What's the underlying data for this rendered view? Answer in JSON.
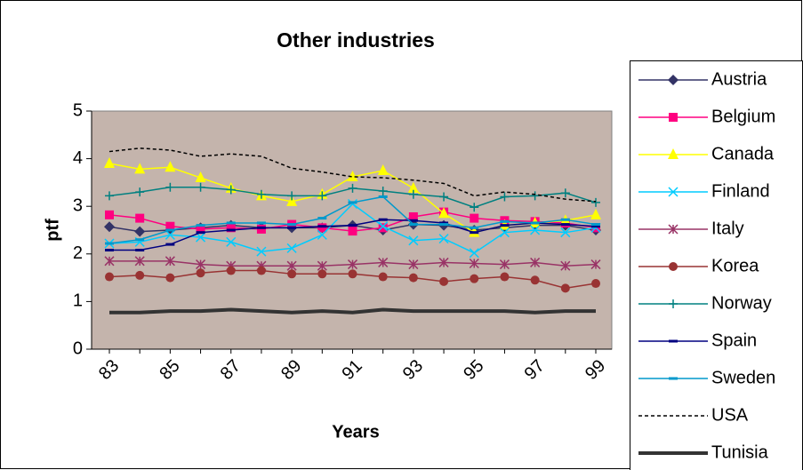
{
  "chart_data": {
    "type": "line",
    "title": "Other industries",
    "x_label": "Years",
    "y_label": "ptf",
    "categories": [
      "83",
      null,
      "85",
      null,
      "87",
      null,
      "89",
      null,
      "91",
      null,
      "93",
      null,
      "95",
      null,
      "97",
      null,
      "99"
    ],
    "ylim": [
      0,
      5
    ],
    "yticks": [
      0,
      1,
      2,
      3,
      4,
      5
    ],
    "background": "#c4b4ac",
    "series": [
      {
        "name": "Austria",
        "color": "#333366",
        "marker": "diamond",
        "values": [
          2.57,
          2.47,
          2.5,
          2.55,
          2.6,
          2.55,
          2.55,
          2.55,
          2.6,
          2.5,
          2.62,
          2.6,
          2.5,
          2.55,
          2.6,
          2.6,
          2.5
        ]
      },
      {
        "name": "Belgium",
        "color": "#ff0080",
        "marker": "square",
        "values": [
          2.82,
          2.75,
          2.58,
          2.52,
          2.55,
          2.52,
          2.62,
          2.55,
          2.48,
          2.55,
          2.78,
          2.88,
          2.75,
          2.7,
          2.68,
          2.65,
          2.55
        ]
      },
      {
        "name": "Canada",
        "color": "#ffff00",
        "marker": "triangle",
        "values": [
          3.9,
          3.78,
          3.82,
          3.6,
          3.38,
          3.22,
          3.1,
          3.25,
          3.62,
          3.75,
          3.38,
          2.85,
          2.45,
          2.6,
          2.65,
          2.7,
          2.82
        ]
      },
      {
        "name": "Finland",
        "color": "#00ccff",
        "marker": "x",
        "values": [
          2.22,
          2.25,
          2.4,
          2.35,
          2.25,
          2.05,
          2.12,
          2.4,
          3.05,
          2.58,
          2.28,
          2.32,
          2.02,
          2.45,
          2.5,
          2.45,
          2.55
        ]
      },
      {
        "name": "Italy",
        "color": "#993366",
        "marker": "star",
        "values": [
          1.85,
          1.85,
          1.85,
          1.78,
          1.75,
          1.75,
          1.75,
          1.75,
          1.78,
          1.82,
          1.78,
          1.82,
          1.8,
          1.78,
          1.82,
          1.75,
          1.78
        ]
      },
      {
        "name": "Korea",
        "color": "#993333",
        "marker": "circle",
        "values": [
          1.52,
          1.55,
          1.5,
          1.6,
          1.65,
          1.65,
          1.58,
          1.58,
          1.58,
          1.52,
          1.5,
          1.42,
          1.48,
          1.52,
          1.45,
          1.28,
          1.38
        ]
      },
      {
        "name": "Norway",
        "color": "#008080",
        "marker": "plus",
        "values": [
          3.22,
          3.3,
          3.4,
          3.4,
          3.35,
          3.25,
          3.22,
          3.22,
          3.38,
          3.32,
          3.25,
          3.2,
          2.98,
          3.2,
          3.22,
          3.28,
          3.08
        ]
      },
      {
        "name": "Spain",
        "color": "#000080",
        "marker": "dash",
        "values": [
          2.08,
          2.08,
          2.2,
          2.45,
          2.5,
          2.55,
          2.55,
          2.58,
          2.6,
          2.72,
          2.7,
          2.65,
          2.45,
          2.6,
          2.65,
          2.62,
          2.58
        ]
      },
      {
        "name": "Sweden",
        "color": "#0099cc",
        "marker": "dash",
        "values": [
          2.22,
          2.3,
          2.5,
          2.6,
          2.65,
          2.65,
          2.62,
          2.75,
          3.08,
          3.2,
          2.62,
          2.62,
          2.55,
          2.68,
          2.65,
          2.72,
          2.62
        ]
      },
      {
        "name": "USA",
        "color": "#000000",
        "dashed": true,
        "values": [
          4.15,
          4.22,
          4.18,
          4.05,
          4.1,
          4.05,
          3.8,
          3.72,
          3.62,
          3.6,
          3.55,
          3.48,
          3.22,
          3.3,
          3.25,
          3.15,
          3.1
        ]
      },
      {
        "name": "Tunisia",
        "color": "#333333",
        "line_width": 4,
        "values": [
          0.77,
          0.77,
          0.8,
          0.8,
          0.83,
          0.8,
          0.77,
          0.8,
          0.77,
          0.83,
          0.8,
          0.8,
          0.8,
          0.8,
          0.77,
          0.8,
          0.8
        ]
      }
    ]
  }
}
